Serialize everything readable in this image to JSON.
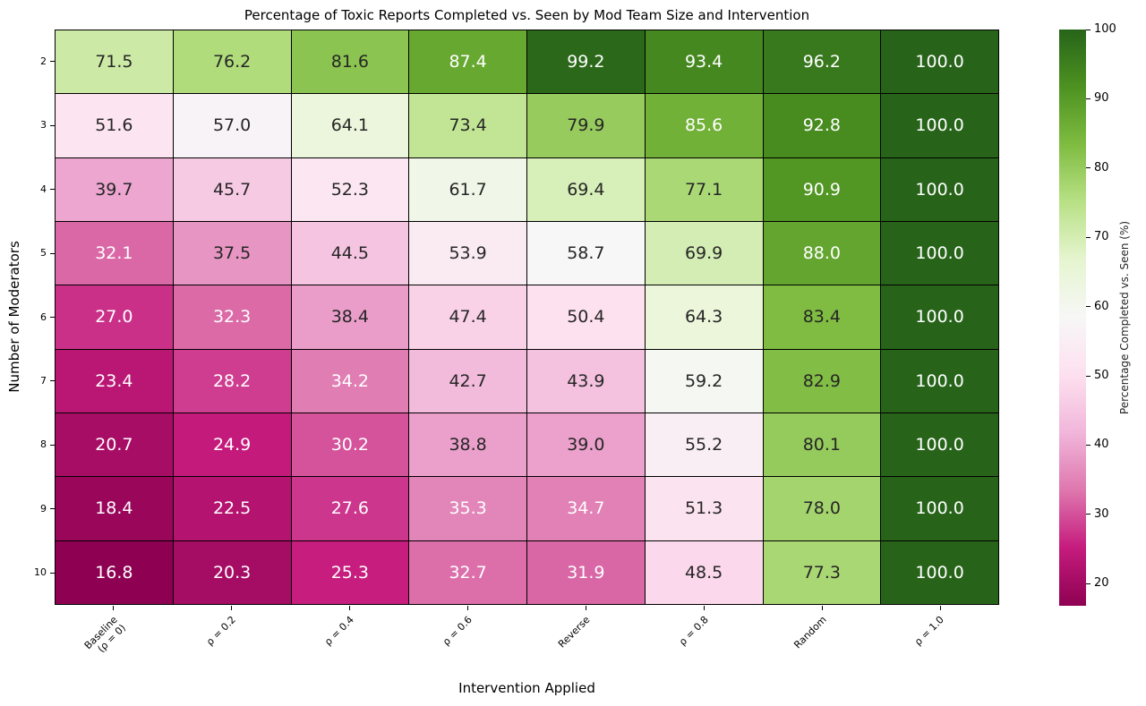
{
  "chart_data": {
    "type": "heatmap",
    "title": "Percentage of Toxic Reports Completed vs. Seen by Mod Team Size and Intervention",
    "xlabel": "Intervention Applied",
    "ylabel": "Number of Moderators",
    "x_categories": [
      "Baseline\n(ρ = 0)",
      "ρ = 0.2",
      "ρ = 0.4",
      "ρ = 0.6",
      "Reverse",
      "ρ = 0.8",
      "Random",
      "ρ = 1.0"
    ],
    "y_categories": [
      "2",
      "3",
      "4",
      "5",
      "6",
      "7",
      "8",
      "9",
      "10"
    ],
    "values": [
      [
        71.5,
        76.2,
        81.6,
        87.4,
        99.2,
        93.4,
        96.2,
        100.0
      ],
      [
        51.6,
        57.0,
        64.1,
        73.4,
        79.9,
        85.6,
        92.8,
        100.0
      ],
      [
        39.7,
        45.7,
        52.3,
        61.7,
        69.4,
        77.1,
        90.9,
        100.0
      ],
      [
        32.1,
        37.5,
        44.5,
        53.9,
        58.7,
        69.9,
        88.0,
        100.0
      ],
      [
        27.0,
        32.3,
        38.4,
        47.4,
        50.4,
        64.3,
        83.4,
        100.0
      ],
      [
        23.4,
        28.2,
        34.2,
        42.7,
        43.9,
        59.2,
        82.9,
        100.0
      ],
      [
        20.7,
        24.9,
        30.2,
        38.8,
        39.0,
        55.2,
        80.1,
        100.0
      ],
      [
        18.4,
        22.5,
        27.6,
        35.3,
        34.7,
        51.3,
        78.0,
        100.0
      ],
      [
        16.8,
        20.3,
        25.3,
        32.7,
        31.9,
        48.5,
        77.3,
        100.0
      ]
    ],
    "vmin": 16.8,
    "vmax": 100,
    "annotation_decimals": 1,
    "grid_line_color": "#000000",
    "colormap": "PiYG",
    "colormap_anchors": [
      "#8e0152",
      "#c51b7d",
      "#de77ae",
      "#f1b6da",
      "#fde0ef",
      "#f7f7f7",
      "#e6f5d0",
      "#b8e186",
      "#7fbc41",
      "#4d9221",
      "#276419"
    ],
    "annotation_dark_color": "#262626",
    "annotation_light_color": "#ffffff",
    "colorbar": {
      "label": "Percentage Completed vs. Seen (%)",
      "ticks": [
        20,
        30,
        40,
        50,
        60,
        70,
        80,
        90,
        100
      ],
      "position": "right"
    },
    "legend_position": "right-colorbar",
    "grid": "cell-borders"
  }
}
